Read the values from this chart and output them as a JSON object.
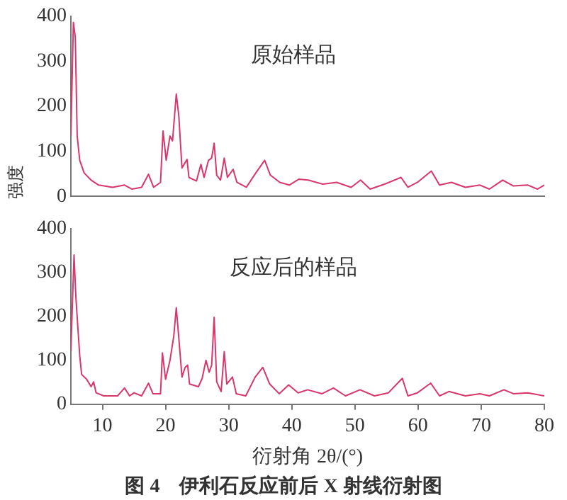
{
  "chart_data": [
    {
      "type": "line",
      "ylabel": "强度",
      "annotations": [
        "原始样品"
      ],
      "xlim": [
        5,
        80
      ],
      "xticks": [
        10,
        20,
        30,
        40,
        50,
        60,
        70,
        80
      ],
      "ylim": [
        0,
        400
      ],
      "yticks": [
        0,
        100,
        200,
        300,
        400
      ],
      "tick_labels": "y",
      "grid": false,
      "legend": false,
      "marker": "none",
      "x": [
        5,
        5.4,
        5.7,
        6,
        6.4,
        7.1,
        8.2,
        9.4,
        11.6,
        13.5,
        14.7,
        16.2,
        17.3,
        18.1,
        19.2,
        19.6,
        20.1,
        20.7,
        21.1,
        21.7,
        22.1,
        22.6,
        23.4,
        23.7,
        24.9,
        25.6,
        26.1,
        26.8,
        27.3,
        27.7,
        28.1,
        28.7,
        29.3,
        29.8,
        30.7,
        31.3,
        32.8,
        34.3,
        35.7,
        36.6,
        38.1,
        39.6,
        41.1,
        42.6,
        44.9,
        47.1,
        49.4,
        50.9,
        52.4,
        54.7,
        57.3,
        58.4,
        59.9,
        62.1,
        63.4,
        65.3,
        67.5,
        69.8,
        71.3,
        73.4,
        75.1,
        77.4,
        78.9,
        80
      ],
      "series": [
        {
          "color": "#d9366a",
          "values": [
            134,
            386,
            353,
            134,
            80,
            52,
            36,
            25,
            20,
            25,
            16,
            20,
            49,
            20,
            31,
            145,
            80,
            134,
            123,
            227,
            178,
            63,
            82,
            42,
            34,
            71,
            42,
            80,
            85,
            118,
            47,
            36,
            85,
            42,
            60,
            31,
            20,
            52,
            80,
            47,
            31,
            25,
            38,
            36,
            27,
            31,
            20,
            36,
            16,
            27,
            42,
            20,
            31,
            56,
            25,
            31,
            20,
            25,
            16,
            36,
            23,
            25,
            16,
            25
          ]
        }
      ]
    },
    {
      "type": "line",
      "xlabel": "衍射角 2θ/(°)",
      "annotations": [
        "反应后的样品",
        "图 4　伊利石反应前后 X 射线衍射图"
      ],
      "xlim": [
        5,
        80
      ],
      "xticks": [
        10,
        20,
        30,
        40,
        50,
        60,
        70,
        80
      ],
      "ylim": [
        0,
        400
      ],
      "yticks": [
        0,
        100,
        200,
        300,
        400
      ],
      "grid": false,
      "legend": false,
      "marker": "none",
      "x": [
        5,
        5.5,
        5.8,
        6.4,
        6.7,
        7.5,
        8.2,
        8.6,
        9,
        10.2,
        12.4,
        13.5,
        14.3,
        15,
        16.2,
        17.3,
        18,
        19.2,
        19.5,
        20,
        20.7,
        21.3,
        21.7,
        22.2,
        22.6,
        23.1,
        23.5,
        23.8,
        25.2,
        25.8,
        26.4,
        26.9,
        27.3,
        27.7,
        28.1,
        28.8,
        29.3,
        29.7,
        30.6,
        31.2,
        32.7,
        34.2,
        35.4,
        36.5,
        38,
        39.5,
        41,
        42.5,
        44.8,
        46.6,
        48.5,
        50.8,
        53.1,
        55.3,
        57.5,
        58.4,
        59.9,
        62,
        63.4,
        64.9,
        67.5,
        69.8,
        71.3,
        73.6,
        75.1,
        77.4,
        80
      ],
      "series": [
        {
          "color": "#d9366a",
          "values": [
            122,
            340,
            242,
            111,
            68,
            57,
            40,
            51,
            26,
            19,
            19,
            37,
            19,
            26,
            19,
            48,
            24,
            24,
            117,
            57,
            100,
            155,
            220,
            133,
            62,
            84,
            89,
            46,
            40,
            59,
            100,
            73,
            89,
            198,
            51,
            29,
            120,
            46,
            62,
            24,
            19,
            62,
            84,
            46,
            24,
            44,
            26,
            33,
            24,
            37,
            19,
            33,
            19,
            26,
            59,
            19,
            26,
            48,
            19,
            29,
            19,
            24,
            19,
            33,
            24,
            26,
            19
          ]
        }
      ]
    }
  ]
}
